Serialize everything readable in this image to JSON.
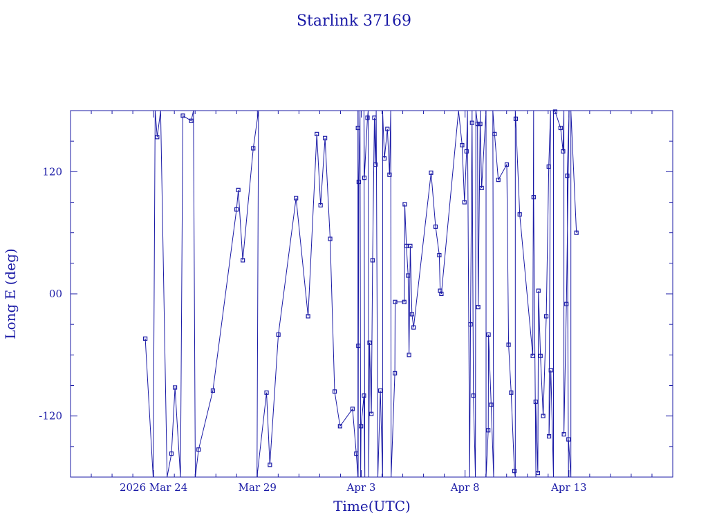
{
  "chart_data": {
    "type": "line",
    "title": "Starlink 37169",
    "xlabel": "Time(UTC)",
    "ylabel": "Long E (deg)",
    "color": "#1a1aa6",
    "x_range_days": [
      "2026-03-20",
      "2026-04-18"
    ],
    "ylim": [
      -180,
      180
    ],
    "x_tick_labels": [
      {
        "label": "2026 Mar 24",
        "date": "2026-03-24"
      },
      {
        "label": "Mar 29",
        "date": "2026-03-29"
      },
      {
        "label": "Apr  3",
        "date": "2026-04-03"
      },
      {
        "label": "Apr  8",
        "date": "2026-04-08"
      },
      {
        "label": "Apr 13",
        "date": "2026-04-13"
      }
    ],
    "y_ticks": [
      {
        "label": "120",
        "value": 120
      },
      {
        "label": "00",
        "value": 0
      },
      {
        "label": "-120",
        "value": -120
      }
    ],
    "grid": false,
    "markers": "square",
    "series": [
      {
        "points": [
          [
            "2026-03-23 14:24",
            -44
          ],
          [
            "2026-03-23 23:31",
            -180
          ],
          [
            "2026-03-24 01:50",
            180
          ],
          [
            "2026-03-24 04:10",
            154
          ],
          [
            "2026-03-24 08:05",
            180
          ],
          [
            "2026-03-24 15:38",
            -180
          ],
          [
            "2026-03-24 20:38",
            -157
          ],
          [
            "2026-03-25 00:43",
            -92
          ],
          [
            "2026-03-25 07:05",
            -180
          ],
          [
            "2026-03-25 09:50",
            175
          ],
          [
            "2026-03-25 19:31",
            170
          ],
          [
            "2026-03-25 22:05",
            180
          ],
          [
            "2026-03-26 00:14",
            -180
          ],
          [
            "2026-03-26 04:00",
            -153
          ],
          [
            "2026-03-26 20:34",
            -95
          ],
          [
            "2026-03-27 23:53",
            83
          ],
          [
            "2026-03-28 01:55",
            102
          ],
          [
            "2026-03-28 07:05",
            33
          ],
          [
            "2026-03-28 19:10",
            143
          ],
          [
            "2026-03-29 01:14",
            180
          ],
          [
            "2026-03-28 23:31",
            -180
          ],
          [
            "2026-03-29 10:34",
            -97
          ],
          [
            "2026-03-29 14:24",
            -168
          ],
          [
            "2026-03-30 00:14",
            -40
          ],
          [
            "2026-03-30 20:38",
            94
          ],
          [
            "2026-03-31 10:34",
            -22
          ],
          [
            "2026-03-31 20:38",
            157
          ],
          [
            "2026-04-01 01:00",
            87
          ],
          [
            "2026-04-01 06:10",
            153
          ],
          [
            "2026-04-01 12:05",
            54
          ],
          [
            "2026-04-01 17:17",
            -96
          ],
          [
            "2026-04-01 23:31",
            -130
          ],
          [
            "2026-04-02 13:55",
            -113
          ],
          [
            "2026-04-02 18:14",
            -157
          ],
          [
            "2026-04-02 20:10",
            -180
          ],
          [
            "2026-04-02 20:10",
            180
          ],
          [
            "2026-04-02 20:10",
            163
          ],
          [
            "2026-04-02 20:24",
            180
          ],
          [
            "2026-04-02 20:24",
            -180
          ],
          [
            "2026-04-02 20:38",
            -51
          ],
          [
            "2026-04-02 21:07",
            110
          ],
          [
            "2026-04-02 22:34",
            180
          ],
          [
            "2026-04-02 23:17",
            -180
          ],
          [
            "2026-04-02 23:46",
            -130
          ],
          [
            "2026-04-03 03:07",
            -100
          ],
          [
            "2026-04-03 04:10",
            -180
          ],
          [
            "2026-04-03 03:07",
            180
          ],
          [
            "2026-04-03 03:36",
            114
          ],
          [
            "2026-04-03 07:14",
            173
          ],
          [
            "2026-04-03 07:58",
            180
          ],
          [
            "2026-04-03 08:41",
            -180
          ],
          [
            "2026-04-03 09:36",
            -48
          ],
          [
            "2026-04-03 11:41",
            -118
          ],
          [
            "2026-04-03 13:05",
            33
          ],
          [
            "2026-04-03 15:10",
            173
          ],
          [
            "2026-04-03 16:26",
            127
          ],
          [
            "2026-04-03 17:17",
            180
          ],
          [
            "2026-04-03 19:10",
            -180
          ],
          [
            "2026-04-03 22:05",
            -95
          ],
          [
            "2026-04-04 00:43",
            -180
          ],
          [
            "2026-04-04 00:43",
            180
          ],
          [
            "2026-04-04 02:46",
            133
          ],
          [
            "2026-04-04 06:14",
            162
          ],
          [
            "2026-04-04 08:41",
            117
          ],
          [
            "2026-04-04 10:05",
            180
          ],
          [
            "2026-04-04 10:34",
            -180
          ],
          [
            "2026-04-04 14:53",
            -78
          ],
          [
            "2026-04-04 15:10",
            -8
          ],
          [
            "2026-04-05 01:43",
            -8
          ],
          [
            "2026-04-05 02:17",
            88
          ],
          [
            "2026-04-05 04:10",
            47
          ],
          [
            "2026-04-05 06:10",
            18
          ],
          [
            "2026-04-05 07:14",
            -60
          ],
          [
            "2026-04-05 08:41",
            47
          ],
          [
            "2026-04-05 10:34",
            -20
          ],
          [
            "2026-04-05 12:29",
            -33
          ],
          [
            "2026-04-06 08:41",
            119
          ],
          [
            "2026-04-06 13:55",
            66
          ],
          [
            "2026-04-06 18:14",
            38
          ],
          [
            "2026-04-06 19:10",
            3
          ],
          [
            "2026-04-06 20:38",
            0
          ],
          [
            "2026-04-07 16:26",
            180
          ],
          [
            "2026-04-07 20:38",
            146
          ],
          [
            "2026-04-07 23:17",
            90
          ],
          [
            "2026-04-08 01:43",
            140
          ],
          [
            "2026-04-08 02:46",
            180
          ],
          [
            "2026-04-08 05:17",
            -180
          ],
          [
            "2026-04-08 06:14",
            -30
          ],
          [
            "2026-04-08 08:05",
            180
          ],
          [
            "2026-04-08 08:05",
            168
          ],
          [
            "2026-04-08 09:36",
            -100
          ],
          [
            "2026-04-08 11:58",
            -180
          ],
          [
            "2026-04-08 12:29",
            180
          ],
          [
            "2026-04-08 14:24",
            167
          ],
          [
            "2026-04-08 15:10",
            -13
          ],
          [
            "2026-04-08 17:31",
            180
          ],
          [
            "2026-04-08 17:31",
            167
          ],
          [
            "2026-04-08 19:10",
            104
          ],
          [
            "2026-04-09 00:14",
            180
          ],
          [
            "2026-04-09 00:14",
            -180
          ],
          [
            "2026-04-09 02:46",
            -134
          ],
          [
            "2026-04-09 03:07",
            -40
          ],
          [
            "2026-04-09 06:10",
            -109
          ],
          [
            "2026-04-09 09:02",
            -180
          ],
          [
            "2026-04-09 08:05",
            180
          ],
          [
            "2026-04-09 10:05",
            157
          ],
          [
            "2026-04-09 14:24",
            112
          ],
          [
            "2026-04-10 00:14",
            127
          ],
          [
            "2026-04-10 02:17",
            -50
          ],
          [
            "2026-04-10 05:17",
            -97
          ],
          [
            "2026-04-10 09:02",
            -174
          ],
          [
            "2026-04-10 10:05",
            -180
          ],
          [
            "2026-04-10 10:05",
            180
          ],
          [
            "2026-04-10 10:34",
            172
          ],
          [
            "2026-04-10 15:10",
            78
          ],
          [
            "2026-04-11 06:14",
            -61
          ],
          [
            "2026-04-11 07:14",
            180
          ],
          [
            "2026-04-11 07:14",
            95
          ],
          [
            "2026-04-11 09:50",
            -180
          ],
          [
            "2026-04-11 09:36",
            -106
          ],
          [
            "2026-04-11 12:05",
            -176
          ],
          [
            "2026-04-11 12:48",
            3
          ],
          [
            "2026-04-11 15:10",
            -61
          ],
          [
            "2026-04-11 18:14",
            -120
          ],
          [
            "2026-04-11 21:50",
            -22
          ],
          [
            "2026-04-12 00:43",
            125
          ],
          [
            "2026-04-12 02:46",
            180
          ],
          [
            "2026-04-12 01:00",
            -140
          ],
          [
            "2026-04-12 03:07",
            -75
          ],
          [
            "2026-04-12 06:10",
            -180
          ],
          [
            "2026-04-12 06:10",
            180
          ],
          [
            "2026-04-12 08:05",
            179
          ],
          [
            "2026-04-12 14:24",
            163
          ],
          [
            "2026-04-12 17:17",
            140
          ],
          [
            "2026-04-12 18:14",
            180
          ],
          [
            "2026-04-12 18:14",
            -138
          ],
          [
            "2026-04-12 21:07",
            -10
          ],
          [
            "2026-04-13 00:14",
            180
          ],
          [
            "2026-04-12 22:05",
            116
          ],
          [
            "2026-04-12 23:31",
            -180
          ],
          [
            "2026-04-12 23:31",
            -143
          ],
          [
            "2026-04-13 02:17",
            -180
          ],
          [
            "2026-04-13 02:17",
            180
          ],
          [
            "2026-04-13 08:41",
            60
          ]
        ]
      }
    ]
  }
}
